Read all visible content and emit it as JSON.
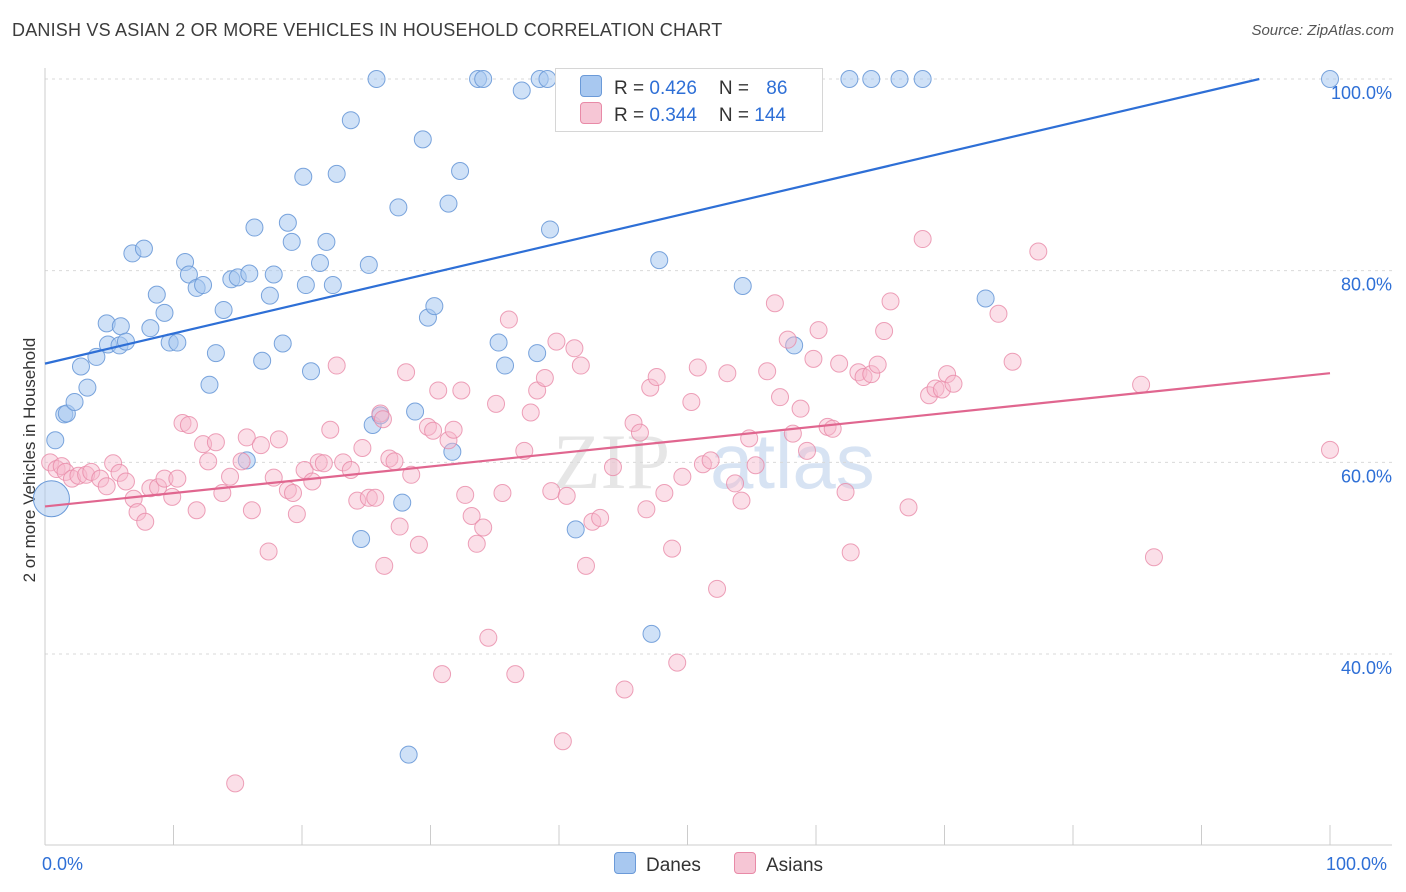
{
  "header": {
    "title": "DANISH VS ASIAN 2 OR MORE VEHICLES IN HOUSEHOLD CORRELATION CHART",
    "source": "Source: ZipAtlas.com"
  },
  "legend": {
    "rows": [
      {
        "r_label": "R = ",
        "r_value": "0.426",
        "n_label": "N = ",
        "n_value": "86"
      },
      {
        "r_label": "R = ",
        "r_value": "0.344",
        "n_label": "N = ",
        "n_value": "144"
      }
    ]
  },
  "bottom_legend": {
    "danes": "Danes",
    "asians": "Asians"
  },
  "axes": {
    "ylabel": "2 or more Vehicles in Household",
    "x_min_label": "0.0%",
    "x_max_label": "100.0%"
  },
  "colors": {
    "danes_fill": "#a8c8f0",
    "danes_stroke": "#6b9ad8",
    "danes_line": "#2e6fd6",
    "asians_fill": "#f6b8cb",
    "asians_stroke": "#e88aa7",
    "asians_line": "#e0668f",
    "tick_text": "#2e6fd6",
    "grid": "#d9d9d9"
  },
  "chart_data": {
    "type": "scatter",
    "xlim": [
      0,
      100
    ],
    "ylim": [
      20,
      102
    ],
    "y_ticks": [
      {
        "value": 40,
        "label": "40.0%"
      },
      {
        "value": 60,
        "label": "60.0%"
      },
      {
        "value": 80,
        "label": "80.0%"
      },
      {
        "value": 100,
        "label": "100.0%"
      }
    ],
    "grid": true,
    "series": [
      {
        "name": "Danes",
        "R": 0.426,
        "N": 86,
        "trend": [
          [
            0,
            70.3
          ],
          [
            94.5,
            100
          ]
        ],
        "points": [
          [
            0.8,
            62.3
          ],
          [
            1.5,
            65
          ],
          [
            1.7,
            65.1
          ],
          [
            2.3,
            66.3
          ],
          [
            2.8,
            70
          ],
          [
            3.3,
            67.8
          ],
          [
            4,
            71
          ],
          [
            4.9,
            72.3
          ],
          [
            4.8,
            74.5
          ],
          [
            5.8,
            72.2
          ],
          [
            5.9,
            74.2
          ],
          [
            6.3,
            72.6
          ],
          [
            6.8,
            81.8
          ],
          [
            7.7,
            82.3
          ],
          [
            8.2,
            74
          ],
          [
            8.7,
            77.5
          ],
          [
            9.3,
            75.6
          ],
          [
            9.7,
            72.5
          ],
          [
            10.3,
            72.5
          ],
          [
            10.9,
            80.9
          ],
          [
            11.2,
            79.6
          ],
          [
            11.8,
            78.2
          ],
          [
            12.3,
            78.5
          ],
          [
            12.8,
            68.1
          ],
          [
            13.3,
            71.4
          ],
          [
            13.9,
            75.9
          ],
          [
            14.5,
            79.1
          ],
          [
            15,
            79.3
          ],
          [
            15.7,
            60.2
          ],
          [
            15.9,
            79.7
          ],
          [
            16.3,
            84.5
          ],
          [
            16.9,
            70.6
          ],
          [
            17.5,
            77.4
          ],
          [
            17.8,
            79.6
          ],
          [
            18.5,
            72.4
          ],
          [
            18.9,
            85
          ],
          [
            19.2,
            83
          ],
          [
            20.1,
            89.8
          ],
          [
            20.3,
            78.5
          ],
          [
            20.7,
            69.5
          ],
          [
            21.4,
            80.8
          ],
          [
            21.9,
            83
          ],
          [
            22.4,
            78.5
          ],
          [
            22.7,
            90.1
          ],
          [
            23.8,
            95.7
          ],
          [
            25.2,
            80.6
          ],
          [
            25.5,
            63.9
          ],
          [
            25.8,
            100
          ],
          [
            26.1,
            64.9
          ],
          [
            24.6,
            52
          ],
          [
            27.5,
            86.6
          ],
          [
            27.8,
            55.8
          ],
          [
            28.3,
            29.5
          ],
          [
            28.8,
            65.3
          ],
          [
            29.4,
            93.7
          ],
          [
            29.8,
            75.1
          ],
          [
            30.3,
            76.3
          ],
          [
            31.4,
            87
          ],
          [
            31.7,
            61.1
          ],
          [
            32.3,
            90.4
          ],
          [
            33.7,
            100
          ],
          [
            34.1,
            100
          ],
          [
            35.3,
            72.5
          ],
          [
            35.8,
            70.1
          ],
          [
            37.1,
            98.8
          ],
          [
            38.3,
            71.4
          ],
          [
            38.5,
            100
          ],
          [
            39.1,
            100
          ],
          [
            39.3,
            84.3
          ],
          [
            41.2,
            100
          ],
          [
            41.3,
            53
          ],
          [
            43.2,
            100
          ],
          [
            47.2,
            42.1
          ],
          [
            47.8,
            81.1
          ],
          [
            51.5,
            100
          ],
          [
            52.5,
            100
          ],
          [
            54.3,
            78.4
          ],
          [
            58.3,
            72.2
          ],
          [
            62.6,
            100
          ],
          [
            64.3,
            100
          ],
          [
            66.5,
            100
          ],
          [
            68.3,
            100
          ],
          [
            73.2,
            77.1
          ],
          [
            100,
            100
          ],
          [
            44.5,
            100
          ],
          [
            50,
            100
          ]
        ]
      },
      {
        "name": "Asians",
        "R": 0.344,
        "N": 144,
        "trend": [
          [
            0,
            55.4
          ],
          [
            100,
            69.3
          ]
        ],
        "points": [
          [
            0.4,
            60
          ],
          [
            0.9,
            59.3
          ],
          [
            1.3,
            59.6
          ],
          [
            1.6,
            59
          ],
          [
            2.1,
            58.3
          ],
          [
            2.6,
            58.6
          ],
          [
            3.2,
            58.7
          ],
          [
            3.6,
            59
          ],
          [
            4.3,
            58.3
          ],
          [
            4.8,
            57.5
          ],
          [
            5.3,
            59.9
          ],
          [
            5.8,
            58.9
          ],
          [
            6.3,
            58
          ],
          [
            6.9,
            56.2
          ],
          [
            7.2,
            54.8
          ],
          [
            7.8,
            53.8
          ],
          [
            8.2,
            57.3
          ],
          [
            8.8,
            57.4
          ],
          [
            9.3,
            58.3
          ],
          [
            9.9,
            56.4
          ],
          [
            10.3,
            58.3
          ],
          [
            10.7,
            64.1
          ],
          [
            11.2,
            63.9
          ],
          [
            11.8,
            55
          ],
          [
            12.3,
            61.9
          ],
          [
            12.7,
            60.1
          ],
          [
            13.3,
            62.1
          ],
          [
            13.8,
            56.8
          ],
          [
            14.4,
            58.5
          ],
          [
            14.8,
            26.5
          ],
          [
            15.3,
            60.1
          ],
          [
            15.7,
            62.6
          ],
          [
            16.1,
            55
          ],
          [
            16.8,
            61.8
          ],
          [
            17.4,
            50.7
          ],
          [
            17.8,
            58.4
          ],
          [
            18.2,
            62.4
          ],
          [
            18.9,
            57.1
          ],
          [
            19.3,
            56.8
          ],
          [
            19.6,
            54.6
          ],
          [
            20.2,
            59.2
          ],
          [
            20.8,
            58
          ],
          [
            21.3,
            60
          ],
          [
            21.7,
            59.9
          ],
          [
            22.2,
            63.4
          ],
          [
            22.7,
            70.1
          ],
          [
            23.2,
            60
          ],
          [
            23.8,
            59.2
          ],
          [
            24.3,
            56
          ],
          [
            24.7,
            61.5
          ],
          [
            25.2,
            56.3
          ],
          [
            25.7,
            56.3
          ],
          [
            26.1,
            65.1
          ],
          [
            26.4,
            49.2
          ],
          [
            26.8,
            60.4
          ],
          [
            27.2,
            60.1
          ],
          [
            27.6,
            53.3
          ],
          [
            28.1,
            69.4
          ],
          [
            28.5,
            58.7
          ],
          [
            29.1,
            51.4
          ],
          [
            29.8,
            63.7
          ],
          [
            30.2,
            63.3
          ],
          [
            30.6,
            67.5
          ],
          [
            30.9,
            37.9
          ],
          [
            31.4,
            62.3
          ],
          [
            31.8,
            63.4
          ],
          [
            32.4,
            67.5
          ],
          [
            32.7,
            56.6
          ],
          [
            33.2,
            54.4
          ],
          [
            33.6,
            51.5
          ],
          [
            34.1,
            53.2
          ],
          [
            34.5,
            41.7
          ],
          [
            35.1,
            66.1
          ],
          [
            35.6,
            56.8
          ],
          [
            36.1,
            74.9
          ],
          [
            36.6,
            37.9
          ],
          [
            37.3,
            61.2
          ],
          [
            37.8,
            65.2
          ],
          [
            38.3,
            67.5
          ],
          [
            38.9,
            68.8
          ],
          [
            39.4,
            57
          ],
          [
            39.8,
            72.6
          ],
          [
            40.3,
            30.9
          ],
          [
            40.6,
            56.5
          ],
          [
            41.2,
            71.9
          ],
          [
            41.7,
            70.1
          ],
          [
            42.1,
            49.2
          ],
          [
            42.6,
            53.8
          ],
          [
            43.2,
            54.2
          ],
          [
            44.2,
            59.5
          ],
          [
            45.1,
            36.3
          ],
          [
            45.8,
            64.1
          ],
          [
            46.3,
            63.1
          ],
          [
            46.8,
            55.1
          ],
          [
            47.1,
            67.8
          ],
          [
            47.6,
            68.9
          ],
          [
            48.2,
            56.8
          ],
          [
            48.8,
            51
          ],
          [
            49.2,
            39.1
          ],
          [
            49.6,
            58.5
          ],
          [
            50.3,
            66.3
          ],
          [
            50.8,
            69.9
          ],
          [
            51.2,
            59.8
          ],
          [
            51.8,
            60.2
          ],
          [
            52.3,
            46.8
          ],
          [
            53.1,
            69.3
          ],
          [
            53.7,
            57.8
          ],
          [
            54.2,
            56
          ],
          [
            54.8,
            62.5
          ],
          [
            55.3,
            59.7
          ],
          [
            56.2,
            69.5
          ],
          [
            56.8,
            76.6
          ],
          [
            57.2,
            66.8
          ],
          [
            57.8,
            72.8
          ],
          [
            58.2,
            63
          ],
          [
            58.8,
            65.6
          ],
          [
            59.3,
            61.2
          ],
          [
            59.8,
            70.8
          ],
          [
            60.2,
            73.8
          ],
          [
            60.9,
            63.7
          ],
          [
            61.3,
            63.5
          ],
          [
            61.8,
            70.3
          ],
          [
            62.3,
            56.9
          ],
          [
            62.7,
            50.6
          ],
          [
            63.3,
            69.4
          ],
          [
            63.7,
            68.9
          ],
          [
            64.3,
            69.2
          ],
          [
            64.8,
            70.2
          ],
          [
            65.3,
            73.7
          ],
          [
            65.8,
            76.8
          ],
          [
            67.2,
            55.3
          ],
          [
            68.3,
            83.3
          ],
          [
            68.8,
            67
          ],
          [
            69.3,
            67.7
          ],
          [
            69.8,
            67.6
          ],
          [
            70.2,
            69.2
          ],
          [
            70.7,
            68.2
          ],
          [
            74.2,
            75.5
          ],
          [
            75.3,
            70.5
          ],
          [
            77.3,
            82
          ],
          [
            85.3,
            68.1
          ],
          [
            86.3,
            50.1
          ],
          [
            100,
            61.3
          ],
          [
            26.3,
            64.5
          ]
        ]
      }
    ]
  }
}
